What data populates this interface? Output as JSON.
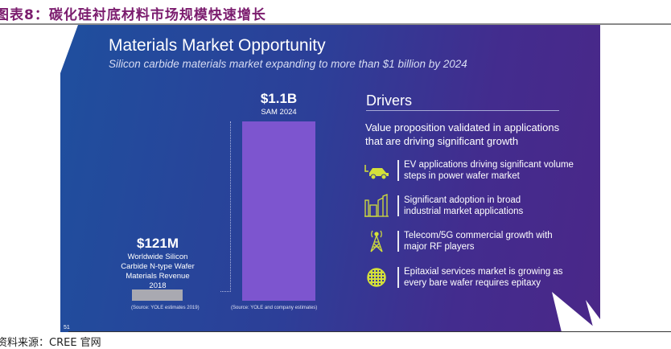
{
  "caption": "图表8：碳化硅衬底材料市场规模快速增长",
  "slide": {
    "title": "Materials Market Opportunity",
    "subtitle": "Silicon carbide materials market expanding to more than $1 billion by 2024",
    "left": {
      "value": "$121M",
      "label1": "Worldwide Silicon",
      "label2": "Carbide N-type Wafer",
      "label3": "Materials Revenue 2018",
      "source": "(Source: YOLE estimates 2019)"
    },
    "right": {
      "value": "$1.1B",
      "label": "SAM 2024",
      "source": "(Source: YOLE and company estimates)"
    },
    "drivers_title": "Drivers",
    "value_prop1": "Value proposition validated in applications",
    "value_prop2": "that are driving significant growth",
    "items": [
      {
        "l1": "EV applications driving significant volume",
        "l2": "steps in power wafer market",
        "icon": "car-icon"
      },
      {
        "l1": "Significant adoption in broad",
        "l2": "industrial market applications",
        "icon": "factory-icon"
      },
      {
        "l1": "Telecom/5G commercial growth with",
        "l2": "major RF players",
        "icon": "cell-tower-icon"
      },
      {
        "l1": "Epitaxial services market is growing as",
        "l2": "every bare wafer requires epitaxy",
        "icon": "wafer-icon"
      }
    ],
    "page_number": "51",
    "accent": "#d4e03a"
  },
  "footer": "资料来源：CREE 官网"
}
